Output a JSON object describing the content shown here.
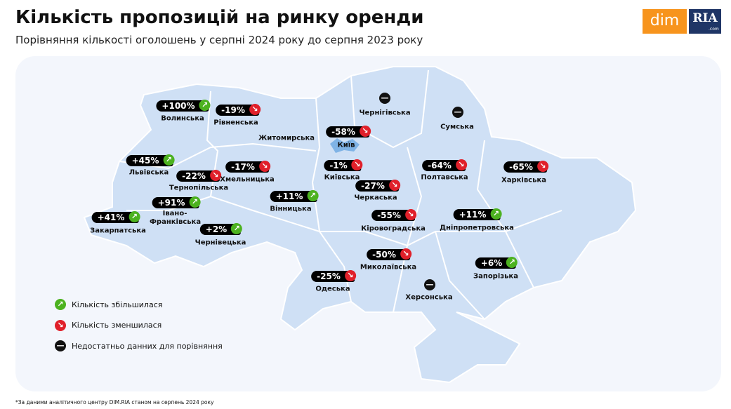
{
  "header": {
    "title": "Кількість пропозицій на ринку оренди",
    "subtitle": "Порівняння кількості оголошень у серпні 2024 року до серпня 2023 року"
  },
  "logo": {
    "left": "dim",
    "right": "RIA",
    "domain": ".com"
  },
  "regions": [
    {
      "name": "Волинська",
      "change": "+100%",
      "trend": "up"
    },
    {
      "name": "Рівненська",
      "change": "-19%",
      "trend": "down"
    },
    {
      "name": "Житомирська"
    },
    {
      "name": "Чернігівська",
      "trend": "none"
    },
    {
      "name": "Сумська",
      "trend": "none"
    },
    {
      "name": "Київ",
      "change": "-58%",
      "trend": "down"
    },
    {
      "name": "Львівська",
      "change": "+45%",
      "trend": "up"
    },
    {
      "name": "Тернопільська",
      "change": "-22%",
      "trend": "down"
    },
    {
      "name": "Хмельницька",
      "change": "-17%",
      "trend": "down"
    },
    {
      "name": "Київська",
      "change": "-1%",
      "trend": "down"
    },
    {
      "name": "Черкаська",
      "change": "-27%",
      "trend": "down"
    },
    {
      "name": "Полтавська",
      "change": "-64%",
      "trend": "down"
    },
    {
      "name": "Харківська",
      "change": "-65%",
      "trend": "down"
    },
    {
      "name": "Вінницька",
      "change": "+11%",
      "trend": "up"
    },
    {
      "name": "Івано-Франківська",
      "change": "+91%",
      "trend": "up"
    },
    {
      "name": "Закарпатська",
      "change": "+41%",
      "trend": "up"
    },
    {
      "name": "Чернівецька",
      "change": "+2%",
      "trend": "up"
    },
    {
      "name": "Кіровоградська",
      "change": "-55%",
      "trend": "down"
    },
    {
      "name": "Дніпропетровська",
      "change": "+11%",
      "trend": "up"
    },
    {
      "name": "Миколаївська",
      "change": "-50%",
      "trend": "down"
    },
    {
      "name": "Запорізька",
      "change": "+6%",
      "trend": "up"
    },
    {
      "name": "Одеська",
      "change": "-25%",
      "trend": "down"
    },
    {
      "name": "Херсонська",
      "trend": "none"
    }
  ],
  "legend": [
    {
      "trend": "up",
      "label": "Кількість збільшилася"
    },
    {
      "trend": "down",
      "label": "Кількість зменшилася"
    },
    {
      "trend": "none",
      "label": "Недостатньо данних для порівняння"
    }
  ],
  "footnote": "*За даними аналітичного центру DIM.RIA станом на серпень 2024 року"
}
